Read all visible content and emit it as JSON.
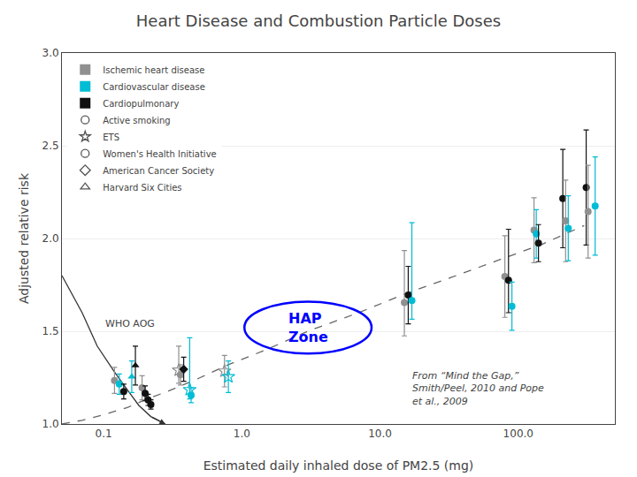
{
  "chart_data": {
    "type": "scatter",
    "title": "Heart Disease and Combustion Particle Doses",
    "x_label": "Estimated daily inhaled dose of PM2.5 (mg)",
    "y_label": "Adjusted relative risk",
    "log": "x",
    "xlim": [
      0.05,
      500
    ],
    "xticks": [
      0.1,
      {
        "value": 1.0,
        "label": "1.0"
      },
      {
        "value": 10.0,
        "label": "10.0"
      },
      {
        "value": 100.0,
        "label": "100.0"
      }
    ],
    "ylim": [
      1.0,
      3.0
    ],
    "yticks": [
      {
        "value": 1.0,
        "label": "1.0"
      },
      1.5,
      {
        "value": 2.0,
        "label": "2.0"
      },
      2.5,
      {
        "value": 3.0,
        "label": "3.0"
      }
    ],
    "grid": "y",
    "legend": "upper left",
    "lines": [
      {
        "x": [
          0.05,
          0.07,
          0.1,
          0.15,
          0.2,
          0.3,
          0.5,
          0.8,
          1.5,
          3.0,
          7.0,
          15.0,
          30.0,
          70.0,
          150.0,
          300.0
        ],
        "y": [
          1.0,
          1.02,
          1.05,
          1.09,
          1.13,
          1.18,
          1.25,
          1.32,
          1.4,
          1.5,
          1.6,
          1.7,
          1.78,
          1.88,
          1.97,
          2.07
        ],
        "color": "#666666",
        "line_style": "dashed"
      },
      {
        "x": [
          0.05,
          0.07,
          0.09,
          0.12,
          0.15,
          0.18,
          0.22,
          0.28
        ],
        "y": [
          1.8,
          1.6,
          1.42,
          1.28,
          1.18,
          1.1,
          1.04,
          1.0
        ],
        "color": "#333333",
        "line_style": "solid"
      }
    ],
    "points": [
      {
        "x": 0.12,
        "y": 1.235,
        "yerr_lo": 0.07,
        "yerr_hi": 0.07,
        "color": "#909090",
        "marker": "circle"
      },
      {
        "x": 0.13,
        "y": 1.215,
        "yerr_lo": 0.055,
        "yerr_hi": 0.055,
        "color": "#00bcd4",
        "marker": "circle"
      },
      {
        "x": 0.14,
        "y": 1.175,
        "yerr_lo": 0.04,
        "yerr_hi": 0.04,
        "color": "#111111",
        "marker": "circle"
      },
      {
        "x": 0.16,
        "y": 1.255,
        "yerr_lo": 0.085,
        "yerr_hi": 0.085,
        "color": "#00bcd4",
        "marker": "triangle-up"
      },
      {
        "x": 0.17,
        "y": 1.315,
        "yerr_lo": 0.105,
        "yerr_hi": 0.105,
        "color": "#111111",
        "marker": "triangle-up"
      },
      {
        "x": 0.19,
        "y": 1.195,
        "yerr_lo": 0.065,
        "yerr_hi": 0.065,
        "color": "#909090",
        "marker": "circle"
      },
      {
        "x": 0.2,
        "y": 1.165,
        "yerr_lo": 0.04,
        "yerr_hi": 0.04,
        "color": "#111111",
        "marker": "circle"
      },
      {
        "x": 0.21,
        "y": 1.13,
        "yerr_lo": 0.03,
        "yerr_hi": 0.03,
        "color": "#111111",
        "marker": "circle"
      },
      {
        "x": 0.22,
        "y": 1.105,
        "yerr_lo": 0.025,
        "yerr_hi": 0.025,
        "color": "#111111",
        "marker": "circle"
      },
      {
        "x": 0.35,
        "y": 1.29,
        "yerr_lo": 0.07,
        "yerr_hi": 0.13,
        "color": "#909090",
        "marker": "star-open"
      },
      {
        "x": 0.36,
        "y": 1.265,
        "yerr_lo": 0.055,
        "yerr_hi": 0.055,
        "color": "#909090",
        "marker": "circle"
      },
      {
        "x": 0.38,
        "y": 1.295,
        "yerr_lo": 0.065,
        "yerr_hi": 0.065,
        "color": "#111111",
        "marker": "diamond"
      },
      {
        "x": 0.42,
        "y": 1.185,
        "yerr_lo": 0.05,
        "yerr_hi": 0.28,
        "color": "#00bcd4",
        "marker": "star-open"
      },
      {
        "x": 0.43,
        "y": 1.155,
        "yerr_lo": 0.04,
        "yerr_hi": 0.04,
        "color": "#00bcd4",
        "marker": "circle"
      },
      {
        "x": 0.75,
        "y": 1.285,
        "yerr_lo": 0.085,
        "yerr_hi": 0.085,
        "color": "#909090",
        "marker": "star-open"
      },
      {
        "x": 0.8,
        "y": 1.255,
        "yerr_lo": 0.085,
        "yerr_hi": 0.085,
        "color": "#00bcd4",
        "marker": "star-open"
      },
      {
        "x": 15.0,
        "y": 1.655,
        "yerr_lo": 0.18,
        "yerr_hi": 0.28,
        "color": "#909090",
        "marker": "circle"
      },
      {
        "x": 16.0,
        "y": 1.695,
        "yerr_lo": 0.155,
        "yerr_hi": 0.155,
        "color": "#111111",
        "marker": "circle"
      },
      {
        "x": 17.0,
        "y": 1.665,
        "yerr_lo": 0.1,
        "yerr_hi": 0.42,
        "color": "#00bcd4",
        "marker": "circle"
      },
      {
        "x": 80.0,
        "y": 1.795,
        "yerr_lo": 0.22,
        "yerr_hi": 0.22,
        "color": "#909090",
        "marker": "circle"
      },
      {
        "x": 85.0,
        "y": 1.775,
        "yerr_lo": 0.175,
        "yerr_hi": 0.275,
        "color": "#111111",
        "marker": "circle"
      },
      {
        "x": 90.0,
        "y": 1.635,
        "yerr_lo": 0.13,
        "yerr_hi": 0.13,
        "color": "#00bcd4",
        "marker": "circle"
      },
      {
        "x": 130.0,
        "y": 2.045,
        "yerr_lo": 0.175,
        "yerr_hi": 0.175,
        "color": "#909090",
        "marker": "circle"
      },
      {
        "x": 135.0,
        "y": 2.025,
        "yerr_lo": 0.13,
        "yerr_hi": 0.13,
        "color": "#00bcd4",
        "marker": "circle"
      },
      {
        "x": 140.0,
        "y": 1.975,
        "yerr_lo": 0.1,
        "yerr_hi": 0.1,
        "color": "#111111",
        "marker": "circle"
      },
      {
        "x": 210.0,
        "y": 2.215,
        "yerr_lo": 0.265,
        "yerr_hi": 0.265,
        "color": "#111111",
        "marker": "circle"
      },
      {
        "x": 220.0,
        "y": 2.095,
        "yerr_lo": 0.22,
        "yerr_hi": 0.22,
        "color": "#909090",
        "marker": "circle"
      },
      {
        "x": 230.0,
        "y": 2.055,
        "yerr_lo": 0.175,
        "yerr_hi": 0.175,
        "color": "#00bcd4",
        "marker": "circle"
      },
      {
        "x": 310.0,
        "y": 2.275,
        "yerr_lo": 0.31,
        "yerr_hi": 0.31,
        "color": "#111111",
        "marker": "circle"
      },
      {
        "x": 320.0,
        "y": 2.145,
        "yerr_lo": 0.25,
        "yerr_hi": 0.25,
        "color": "#909090",
        "marker": "circle"
      },
      {
        "x": 360.0,
        "y": 2.175,
        "yerr_lo": 0.265,
        "yerr_hi": 0.265,
        "color": "#00bcd4",
        "marker": "circle"
      }
    ],
    "legend_items": [
      {
        "name": "Ischemic heart disease",
        "color": "#909090",
        "marker": "square"
      },
      {
        "name": "Cardiovascular disease",
        "color": "#00bcd4",
        "marker": "square"
      },
      {
        "name": "Cardiopulmonary",
        "color": "#111111",
        "marker": "square"
      },
      {
        "name": "Active smoking",
        "color": "#555555",
        "marker": "circle-open"
      },
      {
        "name": "ETS",
        "color": "#555555",
        "marker": "star-open"
      },
      {
        "name": "Women's Health Initiative",
        "color": "#555555",
        "marker": "circle-open"
      },
      {
        "name": "American Cancer Society",
        "color": "#555555",
        "marker": "diamond-open"
      },
      {
        "name": "Harvard Six Cities",
        "color": "#555555",
        "marker": "triangle-up-open"
      }
    ],
    "annotations": [
      {
        "text": "WHO AOG"
      },
      {
        "text": "HAP\nZone",
        "color": "#0000ff"
      },
      {
        "text": "From “Mind the Gap,”\nSmith/Peel, 2010 and Pope\net al., 2009"
      }
    ]
  }
}
